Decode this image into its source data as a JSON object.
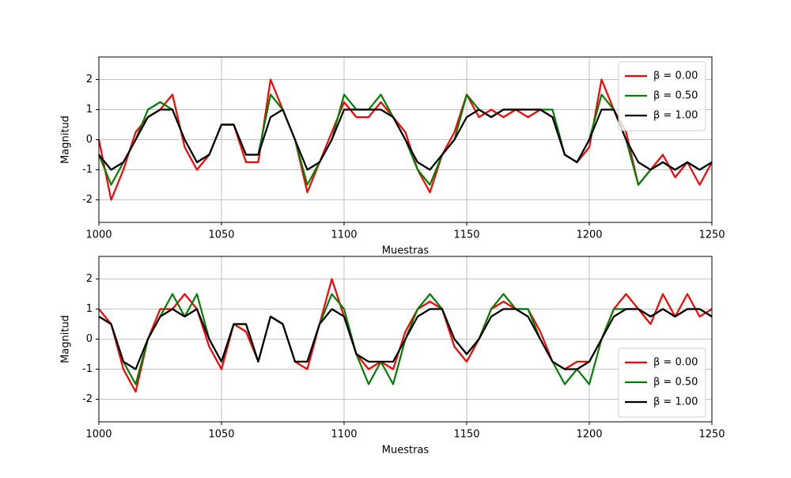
{
  "chart_data": [
    {
      "type": "line",
      "x_label": "Muestras",
      "y_label": "Magnitud",
      "x": [
        1000,
        1005,
        1010,
        1015,
        1020,
        1025,
        1030,
        1035,
        1040,
        1045,
        1050,
        1055,
        1060,
        1065,
        1070,
        1075,
        1080,
        1085,
        1090,
        1095,
        1100,
        1105,
        1110,
        1115,
        1120,
        1125,
        1130,
        1135,
        1140,
        1145,
        1150,
        1155,
        1160,
        1165,
        1170,
        1175,
        1180,
        1185,
        1190,
        1195,
        1200,
        1205,
        1210,
        1215,
        1220,
        1225,
        1230,
        1235,
        1240,
        1245,
        1250
      ],
      "xlim": [
        1000,
        1250
      ],
      "xticks": [
        1000,
        1050,
        1100,
        1150,
        1200,
        1250
      ],
      "ylim": [
        -2.75,
        2.75
      ],
      "yticks": [
        -2,
        -1,
        0,
        1,
        2
      ],
      "grid": true,
      "legend": "upper right",
      "series": [
        {
          "name": "β = 0.00",
          "color": "#ff0000",
          "values": [
            0,
            -2,
            -1,
            0.25,
            0.75,
            1,
            1.5,
            -0.25,
            -1,
            -0.5,
            0.5,
            0.5,
            -0.75,
            -0.75,
            2,
            1,
            0,
            -1.75,
            -0.75,
            0.25,
            1.25,
            0.75,
            0.75,
            1.25,
            0.75,
            0.25,
            -1,
            -1.75,
            -0.5,
            0.25,
            1.5,
            0.75,
            1,
            0.75,
            1,
            0.75,
            1,
            0.75,
            -0.5,
            -0.75,
            -0.25,
            2,
            1,
            0.25,
            -1.5,
            -1,
            -0.5,
            -1.25,
            -0.75,
            -1.5,
            -0.75
          ]
        },
        {
          "name": "β = 0.50",
          "color": "#008000",
          "values": [
            -0.5,
            -1.5,
            -0.75,
            0,
            1,
            1.25,
            1,
            0,
            -0.75,
            -0.5,
            0.5,
            0.5,
            -0.5,
            -0.5,
            1.5,
            1,
            0,
            -1.5,
            -0.75,
            0,
            1.5,
            1,
            1,
            1.5,
            0.75,
            0,
            -1,
            -1.5,
            -0.5,
            0,
            1.5,
            1,
            0.75,
            1,
            1,
            1,
            1,
            1,
            -0.5,
            -0.75,
            0,
            1.5,
            1,
            0,
            -1.5,
            -1,
            -0.75,
            -1,
            -0.75,
            -1,
            -0.75
          ]
        },
        {
          "name": "β = 1.00",
          "color": "#000000",
          "values": [
            -0.5,
            -1,
            -0.75,
            0,
            0.75,
            1,
            1,
            0,
            -0.75,
            -0.5,
            0.5,
            0.5,
            -0.5,
            -0.5,
            0.75,
            1,
            0,
            -1,
            -0.75,
            0,
            1,
            1,
            1,
            1,
            0.75,
            0,
            -0.75,
            -1,
            -0.5,
            0,
            0.75,
            1,
            0.75,
            1,
            1,
            1,
            1,
            0.75,
            -0.5,
            -0.75,
            0,
            1,
            1,
            0,
            -0.75,
            -1,
            -0.75,
            -1,
            -0.75,
            -1,
            -0.75
          ]
        }
      ]
    },
    {
      "type": "line",
      "x_label": "Muestras",
      "y_label": "Magnitud",
      "x": [
        1000,
        1005,
        1010,
        1015,
        1020,
        1025,
        1030,
        1035,
        1040,
        1045,
        1050,
        1055,
        1060,
        1065,
        1070,
        1075,
        1080,
        1085,
        1090,
        1095,
        1100,
        1105,
        1110,
        1115,
        1120,
        1125,
        1130,
        1135,
        1140,
        1145,
        1150,
        1155,
        1160,
        1165,
        1170,
        1175,
        1180,
        1185,
        1190,
        1195,
        1200,
        1205,
        1210,
        1215,
        1220,
        1225,
        1230,
        1235,
        1240,
        1245,
        1250
      ],
      "xlim": [
        1000,
        1250
      ],
      "xticks": [
        1000,
        1050,
        1100,
        1150,
        1200,
        1250
      ],
      "ylim": [
        -2.75,
        2.75
      ],
      "yticks": [
        -2,
        -1,
        0,
        1,
        2
      ],
      "grid": true,
      "legend": "lower right",
      "series": [
        {
          "name": "β = 0.00",
          "color": "#ff0000",
          "values": [
            1,
            0.5,
            -1,
            -1.75,
            0,
            1,
            1,
            1.5,
            1,
            -0.25,
            -1,
            0.5,
            0.25,
            -0.75,
            0.75,
            0.5,
            -0.75,
            -1,
            0.5,
            2,
            0.75,
            -0.5,
            -1,
            -0.75,
            -1,
            0.25,
            1,
            1.25,
            1,
            -0.25,
            -0.75,
            0,
            1,
            1.25,
            1,
            1,
            0.25,
            -0.75,
            -1,
            -0.75,
            -0.75,
            0,
            1,
            1.5,
            1,
            0.5,
            1.5,
            0.75,
            1.5,
            0.75,
            1
          ]
        },
        {
          "name": "β = 0.50",
          "color": "#008000",
          "values": [
            0.75,
            0.5,
            -0.75,
            -1.5,
            0,
            0.75,
            1.5,
            0.75,
            1.5,
            0,
            -0.75,
            0.5,
            0.5,
            -0.75,
            0.75,
            0.5,
            -0.75,
            -0.75,
            0.5,
            1.5,
            1,
            -0.5,
            -1.5,
            -0.75,
            -1.5,
            0,
            1,
            1.5,
            1,
            0,
            -0.5,
            0,
            1,
            1.5,
            1,
            1,
            0,
            -0.75,
            -1.5,
            -1,
            -1.5,
            0,
            1,
            1,
            1,
            0.75,
            1,
            0.75,
            1,
            1,
            0.75
          ]
        },
        {
          "name": "β = 1.00",
          "color": "#000000",
          "values": [
            0.75,
            0.5,
            -0.75,
            -1,
            0,
            0.75,
            1,
            0.75,
            1,
            0,
            -0.75,
            0.5,
            0.5,
            -0.75,
            0.75,
            0.5,
            -0.75,
            -0.75,
            0.5,
            1,
            0.75,
            -0.5,
            -0.75,
            -0.75,
            -0.75,
            0,
            0.75,
            1,
            1,
            0,
            -0.5,
            0,
            0.75,
            1,
            1,
            0.75,
            0,
            -0.75,
            -1,
            -1,
            -0.75,
            0,
            0.75,
            1,
            1,
            0.75,
            1,
            0.75,
            1,
            1,
            0.75
          ]
        }
      ]
    }
  ]
}
